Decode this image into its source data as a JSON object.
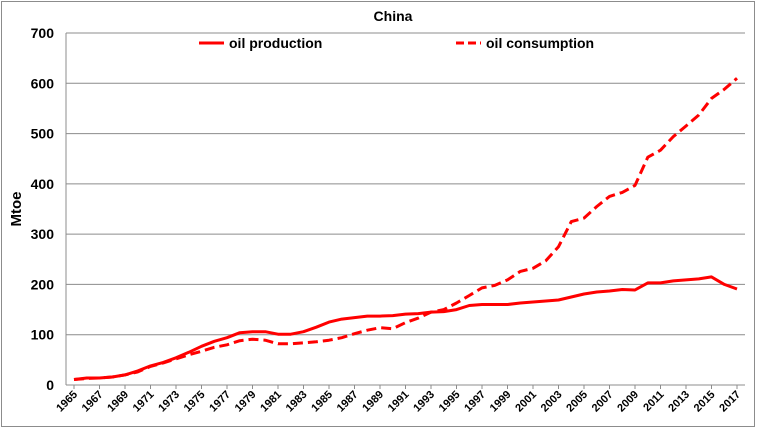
{
  "chart_data": {
    "type": "line",
    "title": "China",
    "xlabel": "",
    "ylabel": "Mtoe",
    "ylim": [
      0,
      700
    ],
    "yticks": [
      0,
      100,
      200,
      300,
      400,
      500,
      600,
      700
    ],
    "grid": true,
    "legend_position": "top",
    "x": [
      1965,
      1966,
      1967,
      1968,
      1969,
      1970,
      1971,
      1972,
      1973,
      1974,
      1975,
      1976,
      1977,
      1978,
      1979,
      1980,
      1981,
      1982,
      1983,
      1984,
      1985,
      1986,
      1987,
      1988,
      1989,
      1990,
      1991,
      1992,
      1993,
      1994,
      1995,
      1996,
      1997,
      1998,
      1999,
      2000,
      2001,
      2002,
      2003,
      2004,
      2005,
      2006,
      2007,
      2008,
      2009,
      2010,
      2011,
      2012,
      2013,
      2014,
      2015,
      2016,
      2017
    ],
    "xtick_labels": [
      "1965",
      "1967",
      "1969",
      "1971",
      "1973",
      "1975",
      "1977",
      "1979",
      "1981",
      "1983",
      "1985",
      "1987",
      "1989",
      "1991",
      "1993",
      "1995",
      "1997",
      "1999",
      "2001",
      "2003",
      "2005",
      "2007",
      "2009",
      "2011",
      "2013",
      "2015",
      "2017"
    ],
    "series": [
      {
        "name": "oil production",
        "color": "#ff0000",
        "style": "solid",
        "values": [
          11,
          14,
          14,
          16,
          20,
          28,
          38,
          45,
          54,
          65,
          77,
          87,
          94,
          104,
          106,
          106,
          101,
          101,
          106,
          115,
          125,
          131,
          134,
          137,
          137,
          138,
          141,
          142,
          145,
          146,
          150,
          158,
          160,
          160,
          160,
          163,
          165,
          167,
          169,
          175,
          181,
          185,
          187,
          190,
          189,
          203,
          203,
          207,
          209,
          211,
          215,
          200,
          191
        ]
      },
      {
        "name": "oil consumption",
        "color": "#ff0000",
        "style": "dashed",
        "values": [
          11,
          13,
          14,
          16,
          20,
          26,
          37,
          44,
          52,
          60,
          67,
          75,
          80,
          88,
          91,
          89,
          82,
          82,
          84,
          86,
          89,
          94,
          102,
          109,
          114,
          112,
          124,
          133,
          145,
          150,
          163,
          178,
          193,
          198,
          209,
          226,
          232,
          247,
          275,
          325,
          332,
          355,
          375,
          383,
          397,
          453,
          467,
          494,
          515,
          537,
          570,
          588,
          610
        ]
      }
    ]
  }
}
